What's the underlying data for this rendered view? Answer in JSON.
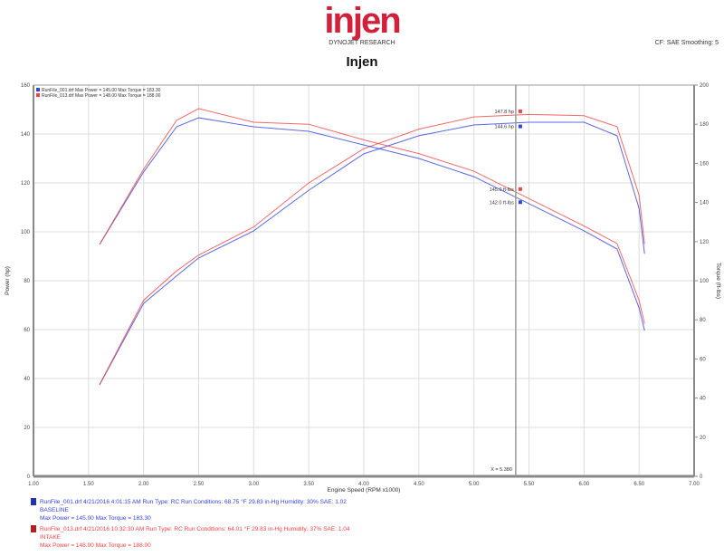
{
  "header": {
    "logo": "injen",
    "company": "DYNOJET RESEARCH",
    "settings": "CF: SAE  Smoothing: 5",
    "title": "Injen"
  },
  "colors": {
    "run1": "#3344dd",
    "run2": "#ee4444",
    "grid": "#d0d0d0",
    "axis": "#888888"
  },
  "chart_data": {
    "type": "line",
    "title": "Injen",
    "xlabel": "Engine Speed (RPM x1000)",
    "ylabel": "Power (hp)",
    "y2label": "Torque (ft-lbs)",
    "xlim": [
      1.0,
      7.0
    ],
    "ylim": [
      0,
      160
    ],
    "y2lim": [
      0,
      200
    ],
    "xticks": [
      "1.00",
      "1.50",
      "2.00",
      "2.50",
      "3.00",
      "3.50",
      "4.00",
      "4.50",
      "5.00",
      "5.50",
      "6.00",
      "6.50",
      "7.00"
    ],
    "yticks": [
      "0",
      "20",
      "40",
      "60",
      "80",
      "100",
      "120",
      "140",
      "160"
    ],
    "y2ticks": [
      "0",
      "20",
      "40",
      "60",
      "80",
      "100",
      "120",
      "140",
      "160",
      "180",
      "200"
    ],
    "grid": true,
    "legend_placement": "top-left",
    "legend": [
      "RunFile_001.drf  Max Power = 145.00   Max Torque = 183.30",
      "RunFile_013.drf  Max Power = 148.00   Max Torque = 188.00"
    ],
    "x": [
      1.6,
      2.0,
      2.3,
      2.5,
      3.0,
      3.5,
      4.0,
      4.5,
      5.0,
      5.5,
      6.0,
      6.3,
      6.5,
      6.55
    ],
    "series": [
      {
        "name": "RunFile_001.drf",
        "quantity": "power",
        "axis": "left",
        "color": "#3344dd",
        "values": [
          37.4,
          70.7,
          82,
          89.3,
          100.4,
          117,
          131.9,
          139.3,
          143.7,
          144.8,
          144.8,
          139.3,
          109.6,
          91
        ]
      },
      {
        "name": "RunFile_013.drf",
        "quantity": "power",
        "axis": "left",
        "color": "#ee4444",
        "values": [
          37.5,
          72,
          84,
          90.5,
          102,
          120,
          134,
          142,
          147,
          148,
          147.5,
          143,
          115,
          95
        ]
      },
      {
        "name": "RunFile_001.drf",
        "quantity": "torque",
        "axis": "right",
        "color": "#3344dd",
        "values": [
          118.5,
          155.6,
          178.7,
          183.3,
          178.7,
          176.4,
          169.4,
          162.5,
          153.2,
          139.4,
          125.5,
          116.2,
          86.1,
          74.5
        ]
      },
      {
        "name": "RunFile_013.drf",
        "quantity": "torque",
        "axis": "right",
        "color": "#ee4444",
        "values": [
          118.5,
          157,
          182,
          188,
          181,
          180,
          172,
          165,
          156,
          142,
          128,
          119,
          90,
          78
        ]
      }
    ],
    "cursor": {
      "x": 5.38,
      "label": "X = 5.380"
    },
    "cursor_labels": [
      {
        "text": "147.8 hp",
        "color": "#ee4444",
        "axis": "left",
        "value": 147.8
      },
      {
        "text": "144.6 hp",
        "color": "#3344dd",
        "axis": "left",
        "value": 144.6
      },
      {
        "text": "145.0 ft-lbs",
        "color": "#ee4444",
        "axis": "right",
        "value": 145.0
      },
      {
        "text": "142.0 ft-lbs",
        "color": "#3344dd",
        "axis": "right",
        "value": 142.0
      }
    ]
  },
  "runs": [
    {
      "line1": "RunFile_001.drf  4/21/2016 4:01:15 AM  Run Type: RC  Run Conditions: 68.75 °F 29.83 in-Hg  Humidity: 30%  SAE: 1.02",
      "line2": "BASELINE",
      "line3": "Max Power = 145.00  Max Torque = 183.30",
      "color": "#3344dd"
    },
    {
      "line1": "RunFile_013.drf  4/21/2016 10:32:30 AM  Run Type: RC  Run Conditions: 64.01 °F 29.83 in-Hg  Humidity: 37%  SAE: 1.04",
      "line2": "INTAKE",
      "line3": "Max Power = 148.00  Max Torque = 188.00",
      "color": "#ee4444"
    }
  ]
}
